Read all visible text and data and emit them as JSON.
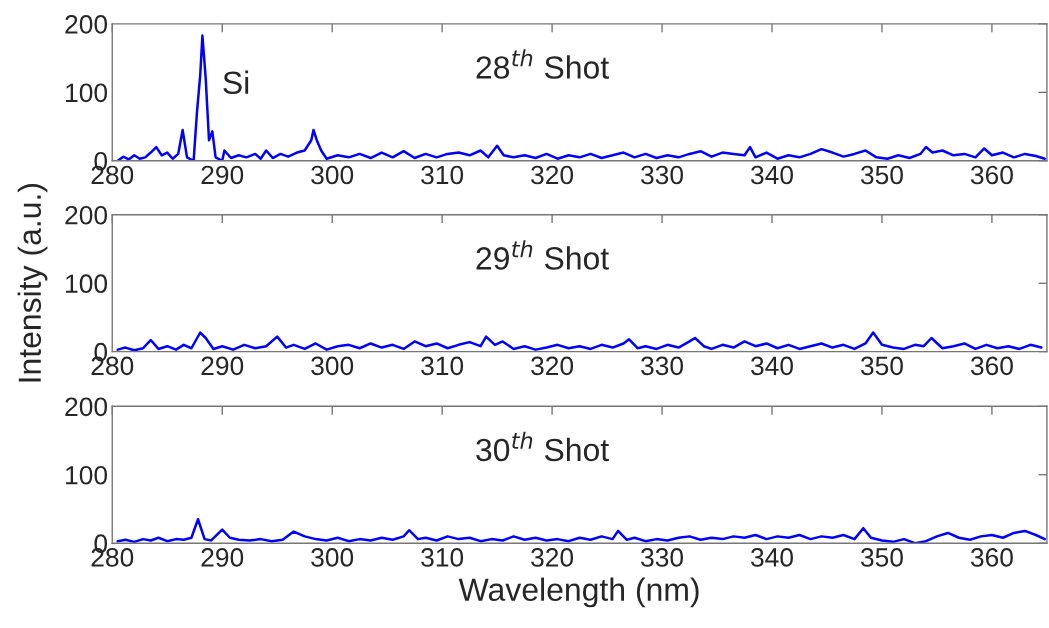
{
  "chart_data": [
    {
      "type": "line",
      "ylim": [
        0,
        200
      ],
      "yticks": [
        0,
        100,
        200
      ],
      "xlim": [
        280,
        365
      ],
      "xticks": [
        280,
        290,
        300,
        310,
        320,
        330,
        340,
        350,
        360
      ],
      "grid": false,
      "annotations": [
        "28$^{th}$ Shot",
        {
          "text": "Si",
          "x": 288.2,
          "y": 183
        }
      ],
      "series": [
        {
          "color": "#0000ff",
          "x": [
            280.5,
            281,
            281.5,
            282,
            282.5,
            283,
            283.5,
            284,
            284.5,
            285,
            285.5,
            286,
            286.4,
            286.8,
            287.4,
            287.7,
            288,
            288.2,
            288.5,
            288.8,
            289.1,
            289.4,
            290,
            290.2,
            290.8,
            291.5,
            292.2,
            293,
            293.5,
            294,
            294.6,
            295.3,
            296,
            296.8,
            297.5,
            298.1,
            298.3,
            298.6,
            299,
            299.5,
            300.5,
            301.5,
            302.5,
            303.5,
            304.5,
            305.5,
            306.5,
            307.5,
            308.5,
            309.5,
            310.5,
            311.5,
            312.5,
            313.5,
            314.2,
            315,
            315.6,
            316.5,
            317.5,
            318.5,
            319.5,
            320.5,
            321.5,
            322.5,
            323.5,
            324.5,
            325.5,
            326.5,
            327.5,
            328.5,
            329.5,
            330.5,
            331.5,
            332.5,
            333.5,
            334.5,
            335.5,
            336.5,
            337.5,
            338,
            338.5,
            339.5,
            340.5,
            341.5,
            342.5,
            343.5,
            344.5,
            345.5,
            346.5,
            347.5,
            348.5,
            349.5,
            350.5,
            351.5,
            352.5,
            353.5,
            354,
            354.6,
            355.5,
            356.5,
            357.5,
            358.5,
            359.3,
            360,
            361,
            362,
            363,
            364,
            364.8
          ],
          "values": [
            0,
            6,
            2,
            8,
            3,
            5,
            12,
            20,
            8,
            12,
            3,
            10,
            45,
            5,
            0,
            70,
            125,
            183,
            120,
            30,
            43,
            5,
            0,
            15,
            4,
            8,
            5,
            10,
            3,
            15,
            4,
            10,
            6,
            12,
            15,
            30,
            45,
            30,
            15,
            3,
            8,
            5,
            10,
            4,
            12,
            5,
            14,
            4,
            10,
            5,
            10,
            12,
            8,
            15,
            5,
            22,
            8,
            5,
            8,
            4,
            10,
            3,
            8,
            5,
            10,
            4,
            8,
            12,
            5,
            10,
            4,
            8,
            5,
            10,
            14,
            6,
            12,
            10,
            8,
            20,
            5,
            12,
            3,
            8,
            5,
            10,
            17,
            12,
            6,
            10,
            15,
            5,
            3,
            8,
            4,
            10,
            20,
            12,
            15,
            8,
            10,
            5,
            18,
            8,
            12,
            5,
            10,
            7,
            3
          ]
        }
      ]
    },
    {
      "type": "line",
      "ylim": [
        0,
        200
      ],
      "yticks": [
        0,
        100,
        200
      ],
      "xlim": [
        280,
        365
      ],
      "xticks": [
        280,
        290,
        300,
        310,
        320,
        330,
        340,
        350,
        360
      ],
      "grid": false,
      "ylabel": "Intensity (a.u.)",
      "annotations": [
        "29$^{th}$ Shot"
      ],
      "series": [
        {
          "color": "#0000ff",
          "x": [
            280.5,
            281.2,
            282,
            282.8,
            283.5,
            284.2,
            285,
            285.8,
            286.5,
            287.2,
            288,
            288.5,
            289.2,
            290,
            291,
            292,
            293,
            294,
            295,
            295.8,
            296.5,
            297.5,
            298.5,
            299.5,
            300.5,
            301.5,
            302.5,
            303.5,
            304.5,
            305.5,
            306.5,
            307.5,
            308.5,
            309.5,
            310.5,
            311.5,
            312.5,
            313.5,
            314,
            314.8,
            315.5,
            316.5,
            317.5,
            318.5,
            319.5,
            320.5,
            321.5,
            322.5,
            323.5,
            324.5,
            325.5,
            326.5,
            327,
            327.8,
            328.5,
            329.5,
            330.5,
            331.5,
            332.5,
            333,
            333.8,
            334.5,
            335.5,
            336.5,
            337.5,
            338.5,
            339.5,
            340.5,
            341.5,
            342.5,
            343.5,
            344.5,
            345.5,
            346.5,
            347.5,
            348.5,
            349.2,
            350,
            351,
            352,
            353,
            353.8,
            354.5,
            355.5,
            356.5,
            357.5,
            358.5,
            359.5,
            360.5,
            361.5,
            362.5,
            363.5,
            364.5
          ],
          "values": [
            3,
            6,
            2,
            5,
            17,
            4,
            8,
            3,
            10,
            5,
            28,
            20,
            4,
            8,
            3,
            10,
            5,
            8,
            22,
            6,
            10,
            4,
            12,
            3,
            8,
            10,
            5,
            12,
            6,
            10,
            4,
            15,
            8,
            12,
            5,
            10,
            14,
            8,
            22,
            10,
            15,
            4,
            8,
            3,
            6,
            10,
            5,
            8,
            4,
            10,
            6,
            12,
            18,
            5,
            8,
            4,
            10,
            6,
            15,
            20,
            8,
            4,
            10,
            6,
            15,
            8,
            12,
            5,
            10,
            4,
            8,
            12,
            6,
            10,
            4,
            12,
            28,
            10,
            6,
            4,
            10,
            8,
            20,
            5,
            8,
            12,
            4,
            10,
            5,
            8,
            4,
            10,
            6
          ]
        }
      ]
    },
    {
      "type": "line",
      "ylim": [
        0,
        200
      ],
      "yticks": [
        0,
        100,
        200
      ],
      "xlim": [
        280,
        365
      ],
      "xticks": [
        280,
        290,
        300,
        310,
        320,
        330,
        340,
        350,
        360
      ],
      "grid": false,
      "xlabel": "Wavelength (nm)",
      "annotations": [
        "30$^{th}$ Shot"
      ],
      "series": [
        {
          "color": "#0000ff",
          "x": [
            280.5,
            281.2,
            282,
            282.8,
            283.5,
            284.2,
            285,
            285.8,
            286.5,
            287.2,
            287.8,
            288.4,
            289,
            290,
            290.7,
            291.5,
            292.5,
            293.5,
            294.5,
            295.5,
            296.5,
            297.5,
            298.5,
            299.5,
            300.5,
            301.5,
            302.5,
            303.5,
            304.5,
            305.5,
            306.5,
            307,
            307.8,
            308.5,
            309.5,
            310.5,
            311.5,
            312.5,
            313.5,
            314.5,
            315.5,
            316.5,
            317.5,
            318.5,
            319.5,
            320.5,
            321.5,
            322.5,
            323.5,
            324.5,
            325.5,
            326,
            326.8,
            327.5,
            328.5,
            329.5,
            330.5,
            331.5,
            332.5,
            333.5,
            334.5,
            335.5,
            336.5,
            337.5,
            338.5,
            339.5,
            340.5,
            341.5,
            342.5,
            343.5,
            344.5,
            345.5,
            346.5,
            347.5,
            348.3,
            349,
            350,
            351,
            352,
            353,
            354,
            355,
            356,
            357,
            358,
            359,
            360,
            361,
            362,
            363,
            364,
            364.8
          ],
          "values": [
            3,
            5,
            2,
            6,
            4,
            8,
            3,
            6,
            5,
            8,
            35,
            6,
            4,
            20,
            8,
            5,
            4,
            6,
            3,
            5,
            17,
            10,
            6,
            4,
            8,
            3,
            6,
            4,
            8,
            5,
            10,
            19,
            6,
            8,
            4,
            10,
            6,
            8,
            3,
            6,
            4,
            10,
            5,
            8,
            4,
            6,
            3,
            8,
            5,
            10,
            6,
            18,
            5,
            8,
            3,
            6,
            4,
            8,
            10,
            5,
            8,
            6,
            10,
            8,
            12,
            6,
            10,
            8,
            12,
            6,
            10,
            8,
            12,
            6,
            22,
            8,
            4,
            2,
            6,
            0,
            3,
            10,
            15,
            8,
            5,
            10,
            12,
            8,
            15,
            18,
            12,
            6
          ]
        }
      ]
    }
  ]
}
